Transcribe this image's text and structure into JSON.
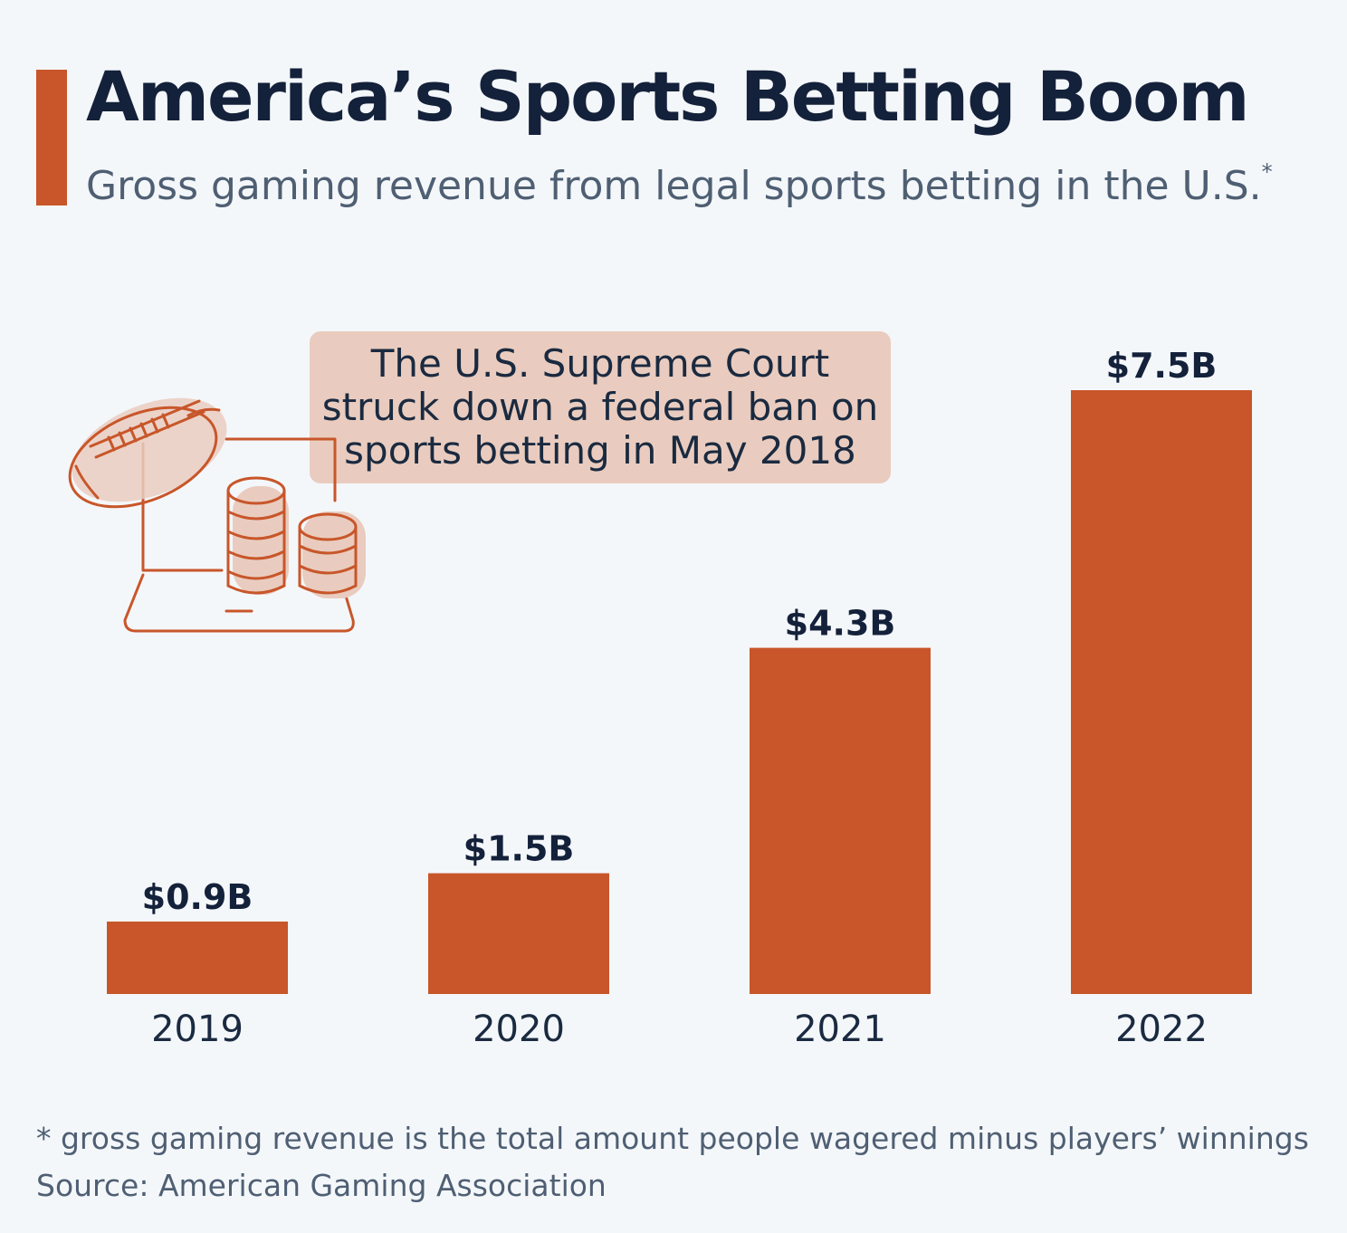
{
  "header": {
    "title": "America’s Sports Betting Boom",
    "subtitle": "Gross gaming revenue from legal sports betting in the U.S.",
    "subtitle_marker": "*"
  },
  "callout": {
    "lines": [
      "The U.S. Supreme Court",
      "struck down a federal ban on",
      "sports betting in May 2018"
    ]
  },
  "illustration": {
    "icon": "football-and-coins-icon"
  },
  "chart_data": {
    "type": "bar",
    "categories": [
      "2019",
      "2020",
      "2021",
      "2022"
    ],
    "values": [
      0.9,
      1.5,
      4.3,
      7.5
    ],
    "value_labels": [
      "$0.9B",
      "$1.5B",
      "$4.3B",
      "$7.5B"
    ],
    "title": "America’s Sports Betting Boom",
    "subtitle": "Gross gaming revenue from legal sports betting in the U.S.*",
    "xlabel": "",
    "ylabel": "",
    "ylim": [
      0,
      7.5
    ],
    "grid": false,
    "bar_color": "#c8562a"
  },
  "footer": {
    "note": "* gross gaming revenue is the total amount people wagered minus players’ winnings",
    "source": "Source: American Gaming Association"
  },
  "colors": {
    "accent": "#c8562a",
    "callout_bg": "#e9ccbf",
    "title": "#14213a",
    "subtitle": "#4f5f73",
    "background": "#f4f7fa"
  }
}
